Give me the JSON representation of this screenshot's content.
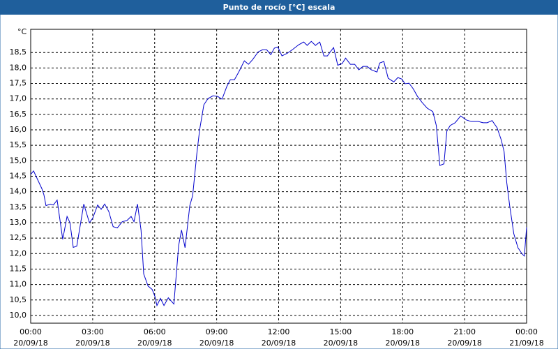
{
  "window_title": "Punto de rocío [°C] escala",
  "chart_data": {
    "type": "line",
    "y_unit_label": "°C",
    "grid": true,
    "x": [
      0,
      0.14,
      0.54,
      0.64,
      0.74,
      0.95,
      1.1,
      1.28,
      1.55,
      1.76,
      1.9,
      2.06,
      2.23,
      2.57,
      2.84,
      3.0,
      3.24,
      3.41,
      3.58,
      3.78,
      3.99,
      4.19,
      4.43,
      4.66,
      4.86,
      5.0,
      5.17,
      5.34,
      5.47,
      5.68,
      5.88,
      6.01,
      6.11,
      6.28,
      6.45,
      6.66,
      6.93,
      7.16,
      7.3,
      7.47,
      7.7,
      7.84,
      8.04,
      8.18,
      8.38,
      8.58,
      8.82,
      9.05,
      9.26,
      9.49,
      9.66,
      9.86,
      10.07,
      10.34,
      10.54,
      10.74,
      11.01,
      11.22,
      11.42,
      11.62,
      11.79,
      11.96,
      12.16,
      12.43,
      12.7,
      12.97,
      13.21,
      13.38,
      13.58,
      13.78,
      13.99,
      14.19,
      14.36,
      14.53,
      14.66,
      14.86,
      15.07,
      15.24,
      15.47,
      15.68,
      15.88,
      16.08,
      16.28,
      16.49,
      16.76,
      16.89,
      17.09,
      17.3,
      17.57,
      17.77,
      17.97,
      18.11,
      18.31,
      18.51,
      18.72,
      18.95,
      19.19,
      19.46,
      19.63,
      19.8,
      20.0,
      20.14,
      20.3,
      20.54,
      20.81,
      21.08,
      21.32,
      21.66,
      21.89,
      22.09,
      22.33,
      22.57,
      22.77,
      22.91,
      23.04,
      23.18,
      23.38,
      23.58,
      23.78,
      23.89,
      24.0
    ],
    "series": [
      {
        "color": "#0000cc",
        "values": [
          14.56,
          14.67,
          14.1,
          13.9,
          13.55,
          13.6,
          13.57,
          13.73,
          12.46,
          13.2,
          13.0,
          12.2,
          12.24,
          13.6,
          13.0,
          13.14,
          13.57,
          13.43,
          13.6,
          13.36,
          12.87,
          12.83,
          13.03,
          13.07,
          13.2,
          13.03,
          13.6,
          12.76,
          11.34,
          10.95,
          10.84,
          10.62,
          10.32,
          10.55,
          10.32,
          10.57,
          10.37,
          12.26,
          12.76,
          12.19,
          13.55,
          13.88,
          15.23,
          16.02,
          16.81,
          17.01,
          17.1,
          17.08,
          16.99,
          17.4,
          17.62,
          17.62,
          17.87,
          18.23,
          18.12,
          18.27,
          18.52,
          18.59,
          18.59,
          18.43,
          18.64,
          18.68,
          18.39,
          18.48,
          18.61,
          18.75,
          18.84,
          18.73,
          18.86,
          18.73,
          18.84,
          18.39,
          18.39,
          18.55,
          18.66,
          18.09,
          18.14,
          18.32,
          18.12,
          18.12,
          17.94,
          18.05,
          18.05,
          17.94,
          17.87,
          18.16,
          18.21,
          17.67,
          17.55,
          17.69,
          17.64,
          17.49,
          17.51,
          17.33,
          17.08,
          16.88,
          16.7,
          16.59,
          16.14,
          14.85,
          14.9,
          15.96,
          16.14,
          16.23,
          16.45,
          16.32,
          16.27,
          16.27,
          16.23,
          16.23,
          16.3,
          16.07,
          15.68,
          15.3,
          14.29,
          13.55,
          12.64,
          12.19,
          11.99,
          11.92,
          12.85
        ]
      }
    ],
    "xlim": [
      0,
      24
    ],
    "xticks": [
      {
        "value": 0,
        "label": [
          "00:00",
          "20/09/18"
        ]
      },
      {
        "value": 3,
        "label": [
          "03:00",
          "20/09/18"
        ]
      },
      {
        "value": 6,
        "label": [
          "06:00",
          "20/09/18"
        ]
      },
      {
        "value": 9,
        "label": [
          "09:00",
          "20/09/18"
        ]
      },
      {
        "value": 12,
        "label": [
          "12:00",
          "20/09/18"
        ]
      },
      {
        "value": 15,
        "label": [
          "15:00",
          "20/09/18"
        ]
      },
      {
        "value": 18,
        "label": [
          "18:00",
          "20/09/18"
        ]
      },
      {
        "value": 21,
        "label": [
          "21:00",
          "20/09/18"
        ]
      },
      {
        "value": 24,
        "label": [
          "00:00",
          "21/09/18"
        ]
      }
    ],
    "ylim": [
      9.75,
      19.25
    ],
    "yticks": [
      {
        "value": 10,
        "label": "10,0"
      },
      {
        "value": 10.5,
        "label": "10,5"
      },
      {
        "value": 11,
        "label": "11,0"
      },
      {
        "value": 11.5,
        "label": "11,5"
      },
      {
        "value": 12,
        "label": "12,0"
      },
      {
        "value": 12.5,
        "label": "12,5"
      },
      {
        "value": 13,
        "label": "13,0"
      },
      {
        "value": 13.5,
        "label": "13,5"
      },
      {
        "value": 14,
        "label": "14,0"
      },
      {
        "value": 14.5,
        "label": "14,5"
      },
      {
        "value": 15,
        "label": "15,0"
      },
      {
        "value": 15.5,
        "label": "15,5"
      },
      {
        "value": 16,
        "label": "16,0"
      },
      {
        "value": 16.5,
        "label": "16,5"
      },
      {
        "value": 17,
        "label": "17,0"
      },
      {
        "value": 17.5,
        "label": "17,5"
      },
      {
        "value": 18,
        "label": "18,0"
      },
      {
        "value": 18.5,
        "label": "18,5"
      }
    ]
  }
}
